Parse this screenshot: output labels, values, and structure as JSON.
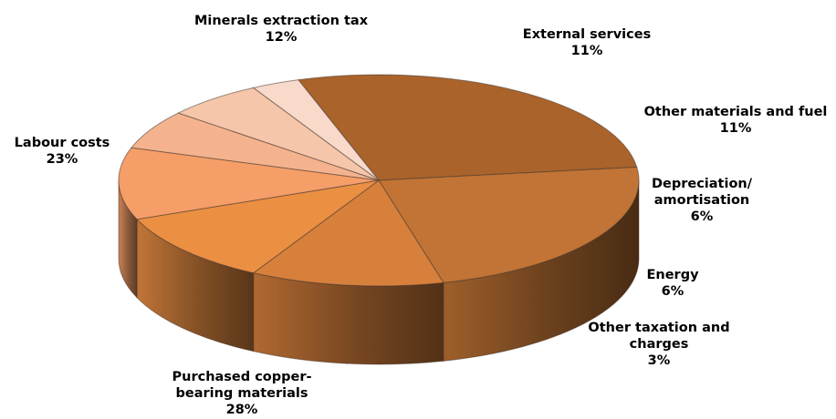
{
  "chart_data": {
    "type": "pie",
    "style": "3d",
    "slices": [
      {
        "name": "Purchased copper-bearing materials",
        "value": 28,
        "label_lines": [
          "Purchased copper-",
          "bearing materials"
        ],
        "pct_label": "28%",
        "color": "#A9632B"
      },
      {
        "name": "Labour costs",
        "value": 23,
        "label_lines": [
          "Labour costs"
        ],
        "pct_label": "23%",
        "color": "#C17435"
      },
      {
        "name": "Minerals extraction tax",
        "value": 12,
        "label_lines": [
          "Minerals extraction tax"
        ],
        "pct_label": "12%",
        "color": "#D7803C"
      },
      {
        "name": "External services",
        "value": 11,
        "label_lines": [
          "External services"
        ],
        "pct_label": "11%",
        "color": "#EB8F43"
      },
      {
        "name": "Other materials and fuel",
        "value": 11,
        "label_lines": [
          "Other materials and fuel"
        ],
        "pct_label": "11%",
        "color": "#F59E68"
      },
      {
        "name": "Depreciation/amortisation",
        "value": 6,
        "label_lines": [
          "Depreciation/",
          "amortisation"
        ],
        "pct_label": "6%",
        "color": "#F4B38E"
      },
      {
        "name": "Energy",
        "value": 6,
        "label_lines": [
          "Energy"
        ],
        "pct_label": "6%",
        "color": "#F6C6AA"
      },
      {
        "name": "Other taxation and charges",
        "value": 3,
        "label_lines": [
          "Other taxation and",
          "charges"
        ],
        "pct_label": "3%",
        "color": "#F8D9CA"
      }
    ]
  }
}
